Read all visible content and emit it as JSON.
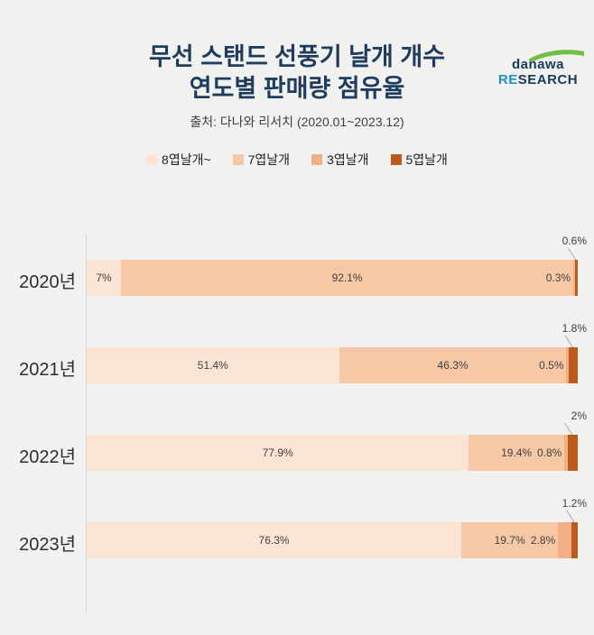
{
  "page": {
    "background_color": "#F1F1EF"
  },
  "logo": {
    "brand": "danawa",
    "research_prefix": "RE",
    "research_suffix": "SEARCH",
    "brand_color": "#16395E",
    "prefix_color": "#1F8FCE",
    "suffix_color": "#16395E",
    "swoosh_color": "#6FBE47"
  },
  "header": {
    "title_line1": "무선 스탠드 선풍기 날개 개수",
    "title_line2": "연도별 판매량 점유율",
    "title_color": "#1D3C5E",
    "subtitle": "출처: 다나와 리서치 (2020.01~2023.12)"
  },
  "chart_data": {
    "type": "bar",
    "orientation": "horizontal",
    "stacked": true,
    "unit": "%",
    "xlim": [
      0,
      100
    ],
    "legend_position": "top",
    "grid": false,
    "categories": [
      "2020년",
      "2021년",
      "2022년",
      "2023년"
    ],
    "series": [
      {
        "name": "8엽날개~",
        "color": "#FBE4D4",
        "values": [
          7,
          51.4,
          77.9,
          76.3
        ],
        "labels": [
          "7%",
          "51.4%",
          "77.9%",
          "76.3%"
        ]
      },
      {
        "name": "7엽날개",
        "color": "#F6C8A6",
        "values": [
          92.1,
          46.3,
          19.4,
          19.7
        ],
        "labels": [
          "92.1%",
          "46.3%",
          "19.4%",
          "19.7%"
        ]
      },
      {
        "name": "3엽날개",
        "color": "#F1AF85",
        "values": [
          0.3,
          0.5,
          0.8,
          2.8
        ],
        "labels": [
          "0.3%",
          "0.5%",
          "0.8%",
          "2.8%"
        ]
      },
      {
        "name": "5엽날개",
        "color": "#C05A1B",
        "values": [
          0.6,
          1.8,
          2.0,
          1.2
        ],
        "labels": [
          "0.6%",
          "1.8%",
          "2%",
          "1.2%"
        ]
      }
    ],
    "value_label_color": "#3F3F3F",
    "axis_line_color": "#D8D8D5",
    "leader_line_color": "#A9A9A7"
  }
}
